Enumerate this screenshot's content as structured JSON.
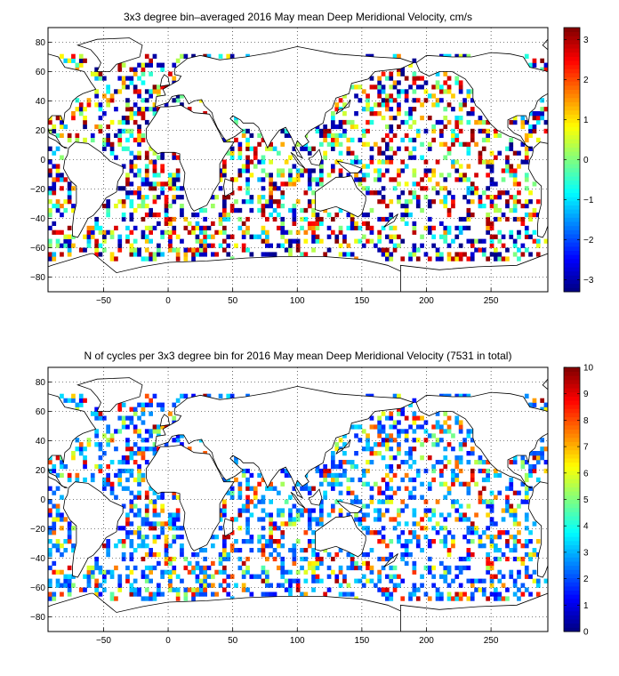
{
  "chart_data": [
    {
      "type": "heatmap",
      "title": "3x3 degree bin–averaged 2016 May mean Deep Meridional Velocity, cm/s",
      "xlabel": "",
      "ylabel": "",
      "xlim": [
        -93,
        294
      ],
      "ylim": [
        -90,
        90
      ],
      "xticks": [
        -50,
        0,
        50,
        100,
        150,
        200,
        250
      ],
      "yticks": [
        -80,
        -60,
        -40,
        -20,
        0,
        20,
        40,
        60,
        80
      ],
      "grid": true,
      "grid_style": "dotted",
      "bin_size_deg": 3,
      "colorbar": {
        "min": -3.3,
        "max": 3.3,
        "ticks": [
          -3,
          -2,
          -1,
          0,
          1,
          2,
          3
        ],
        "colormap": "jet"
      }
    },
    {
      "type": "heatmap",
      "title": "N of cycles per 3x3 degree bin for 2016 May mean Deep Meridional Velocity (7531 in total)",
      "xlabel": "",
      "ylabel": "",
      "xlim": [
        -93,
        294
      ],
      "ylim": [
        -90,
        90
      ],
      "xticks": [
        -50,
        0,
        50,
        100,
        150,
        200,
        250
      ],
      "yticks": [
        -80,
        -60,
        -40,
        -20,
        0,
        20,
        40,
        60,
        80
      ],
      "grid": true,
      "grid_style": "dotted",
      "bin_size_deg": 3,
      "colorbar": {
        "min": 0,
        "max": 10,
        "ticks": [
          0,
          1,
          2,
          3,
          4,
          5,
          6,
          7,
          8,
          9,
          10
        ],
        "colormap": "jet"
      }
    }
  ]
}
